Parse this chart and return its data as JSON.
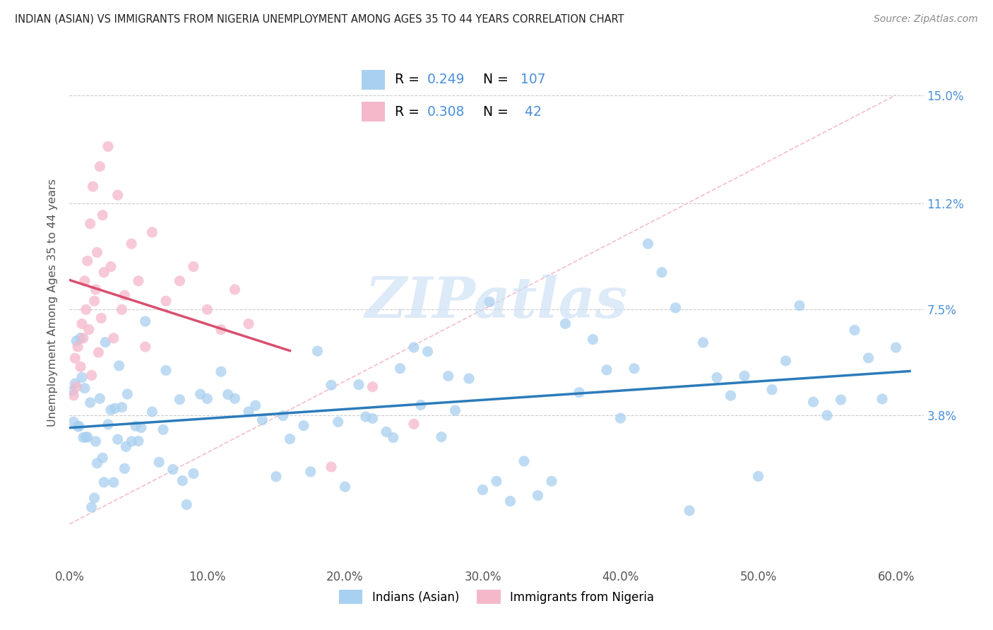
{
  "title": "INDIAN (ASIAN) VS IMMIGRANTS FROM NIGERIA UNEMPLOYMENT AMONG AGES 35 TO 44 YEARS CORRELATION CHART",
  "source": "Source: ZipAtlas.com",
  "ylabel": "Unemployment Among Ages 35 to 44 years",
  "xlabel_ticks": [
    "0.0%",
    "10.0%",
    "20.0%",
    "30.0%",
    "40.0%",
    "50.0%",
    "60.0%"
  ],
  "xlabel_vals": [
    0.0,
    10.0,
    20.0,
    30.0,
    40.0,
    50.0,
    60.0
  ],
  "ytick_labels": [
    "3.8%",
    "7.5%",
    "11.2%",
    "15.0%"
  ],
  "ytick_vals": [
    3.8,
    7.5,
    11.2,
    15.0
  ],
  "xlim": [
    0.0,
    62.0
  ],
  "ylim": [
    -1.5,
    17.0
  ],
  "R_indian": 0.249,
  "N_indian": 107,
  "R_nigeria": 0.308,
  "N_nigeria": 42,
  "color_indian": "#a8d0f0",
  "color_nigeria": "#f5b8cb",
  "trendline_indian": "#2b7bba",
  "trendline_nigeria": "#d94f6e",
  "color_text_blue": "#4a90d9",
  "watermark_color": "#cce0f5",
  "legend_labels": [
    "Indians (Asian)",
    "Immigrants from Nigeria"
  ],
  "indian_seed": 42,
  "nigeria_seed": 99
}
